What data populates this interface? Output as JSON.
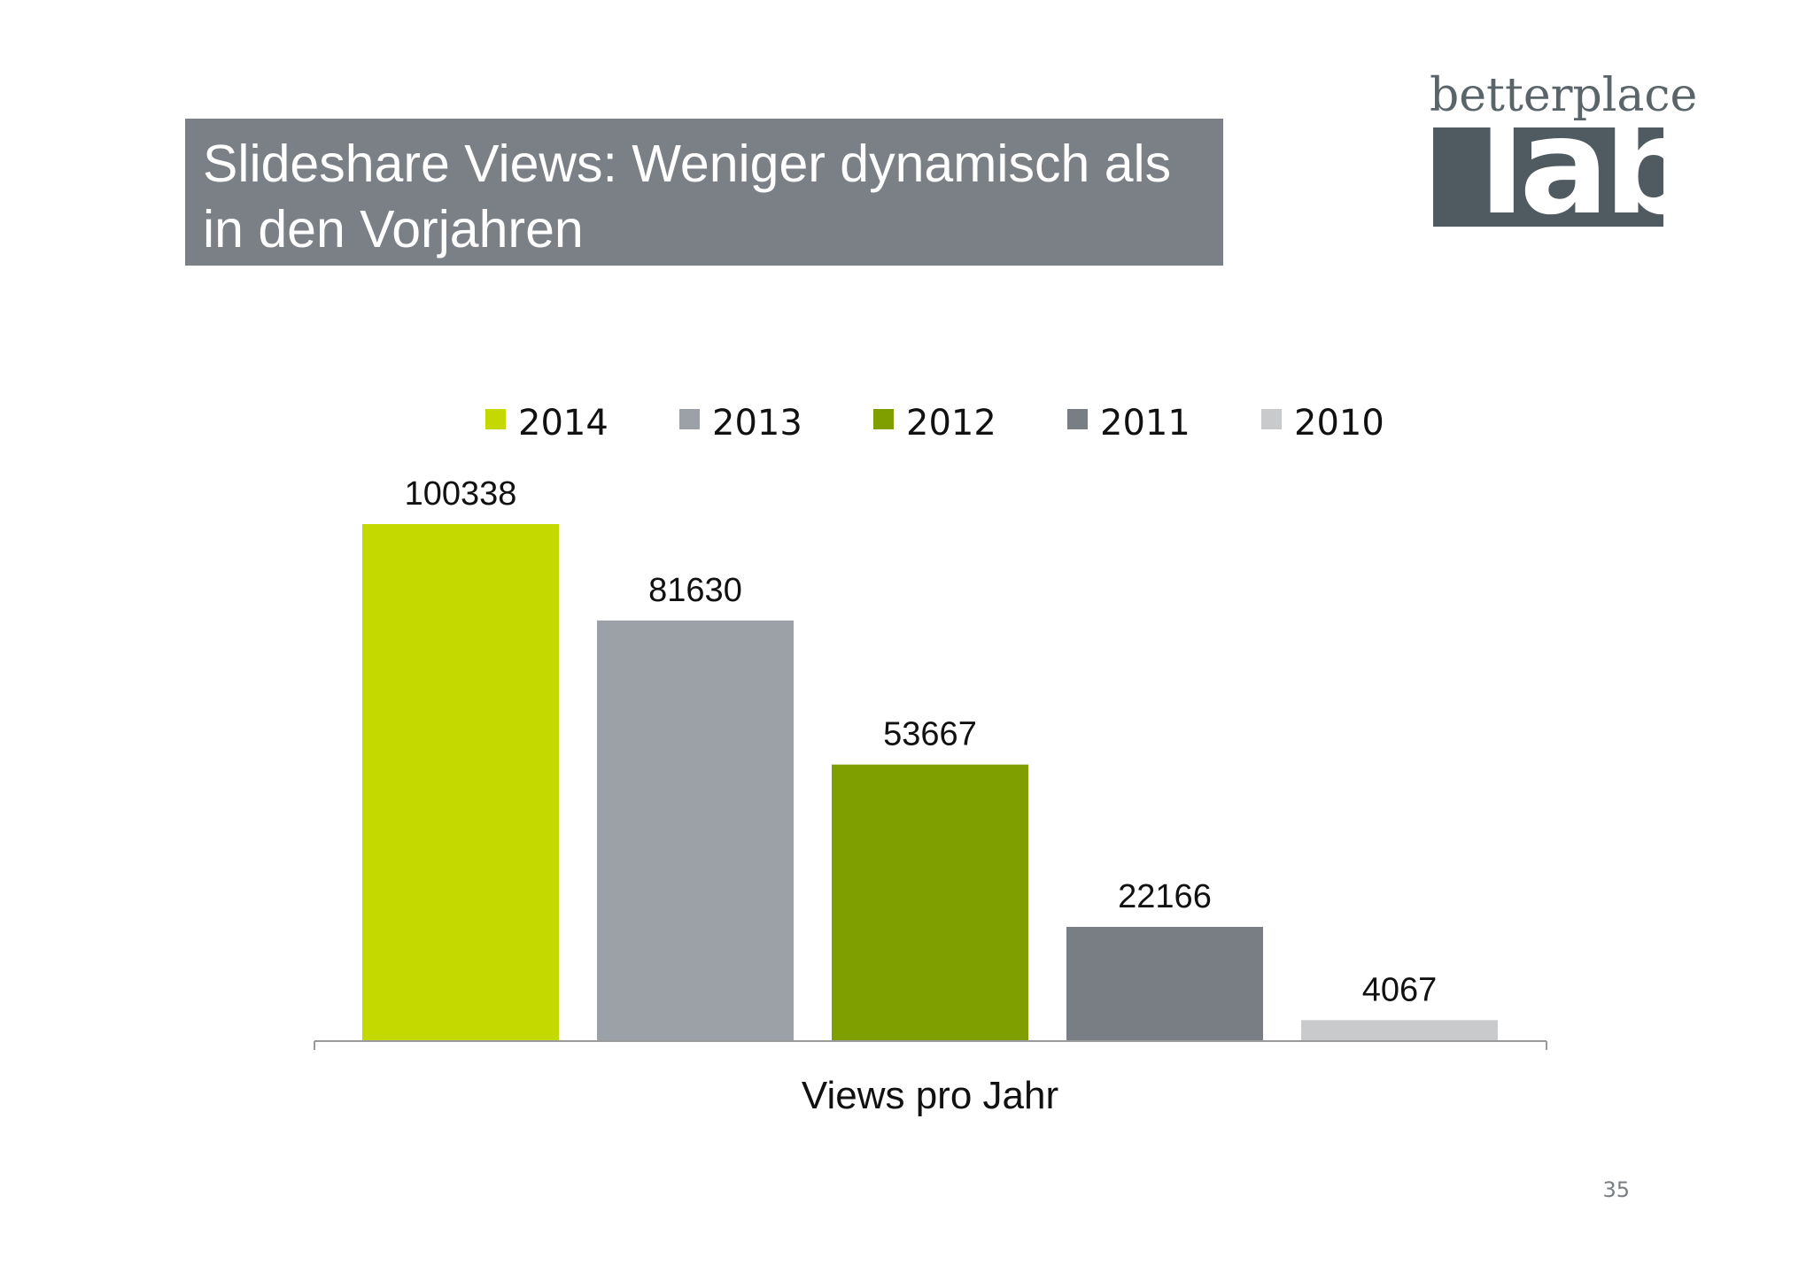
{
  "slide": {
    "title": "Slideshare Views: Weniger dynamisch als\nin den Vorjahren",
    "page_number": "35"
  },
  "logo": {
    "wordmark": "betterplace",
    "mark": "lab",
    "colors": {
      "wordmark": "#5a6469",
      "block": "#4f5b60"
    }
  },
  "colors": {
    "title_bg": "#7b7f86"
  },
  "chart_data": {
    "type": "bar",
    "title": "",
    "xlabel": "Views pro Jahr",
    "ylabel": "",
    "ylim": [
      0,
      100338
    ],
    "grid": false,
    "legend_position": "top",
    "categories": [
      "Views pro Jahr"
    ],
    "series": [
      {
        "name": "2014",
        "values": [
          100338
        ],
        "color": "#c4d900",
        "label": "100338"
      },
      {
        "name": "2013",
        "values": [
          81630
        ],
        "color": "#9ca1a7",
        "label": "81630"
      },
      {
        "name": "2012",
        "values": [
          53667
        ],
        "color": "#7f9e00",
        "label": "53667"
      },
      {
        "name": "2011",
        "values": [
          22166
        ],
        "color": "#797d84",
        "label": "22166"
      },
      {
        "name": "2010",
        "values": [
          4067
        ],
        "color": "#c9cacc",
        "label": "4067"
      }
    ]
  }
}
